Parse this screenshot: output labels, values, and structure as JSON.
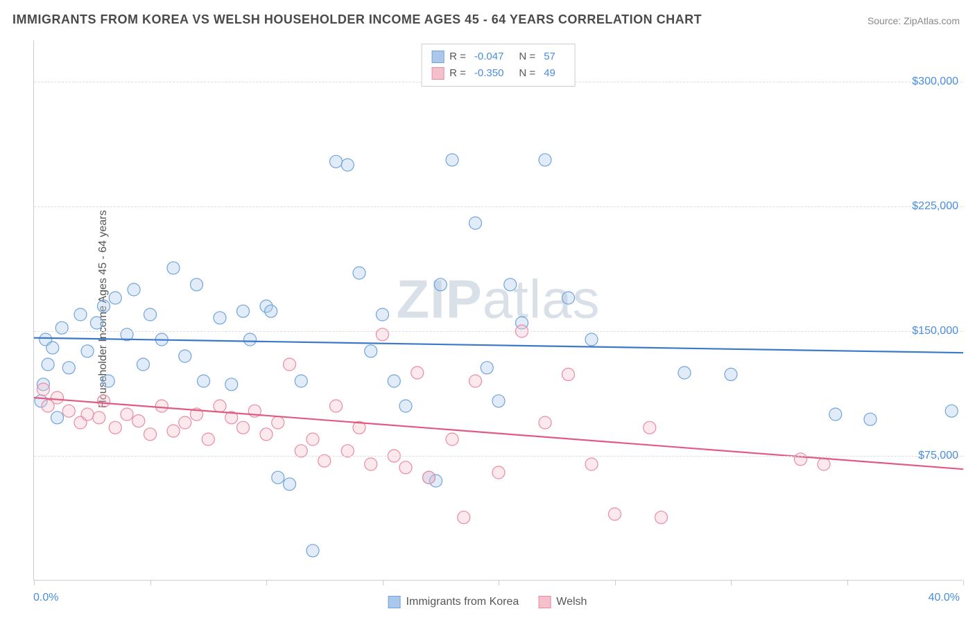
{
  "title": "IMMIGRANTS FROM KOREA VS WELSH HOUSEHOLDER INCOME AGES 45 - 64 YEARS CORRELATION CHART",
  "source_prefix": "Source: ",
  "source_name": "ZipAtlas.com",
  "watermark_a": "ZIP",
  "watermark_b": "atlas",
  "chart": {
    "type": "scatter",
    "background_color": "#ffffff",
    "grid_color": "#dddddd",
    "axis_color": "#cccccc",
    "tick_label_color": "#4a8ddb",
    "ylabel": "Householder Income Ages 45 - 64 years",
    "ylabel_color": "#555555",
    "ylabel_fontsize": 16,
    "xlim": [
      0,
      40
    ],
    "ylim": [
      0,
      325000
    ],
    "xaxis_min_label": "0.0%",
    "xaxis_max_label": "40.0%",
    "ytick_values": [
      75000,
      150000,
      225000,
      300000
    ],
    "ytick_labels": [
      "$75,000",
      "$150,000",
      "$225,000",
      "$300,000"
    ],
    "xtick_positions": [
      0,
      5,
      10,
      15,
      20,
      25,
      30,
      35,
      40
    ],
    "marker_radius": 9,
    "marker_fill_opacity": 0.35,
    "marker_stroke_width": 1.2,
    "trend_line_width": 2.2,
    "series": [
      {
        "name": "Immigrants from Korea",
        "color_fill": "#a9c8ec",
        "color_stroke": "#6fa3dc",
        "line_color": "#3b78c9",
        "R": "-0.047",
        "N": "57",
        "trend": {
          "x1": 0,
          "y1": 146000,
          "x2": 40,
          "y2": 137000
        },
        "points": [
          [
            0.3,
            108000
          ],
          [
            0.4,
            118000
          ],
          [
            0.5,
            145000
          ],
          [
            0.6,
            130000
          ],
          [
            0.8,
            140000
          ],
          [
            1.0,
            98000
          ],
          [
            1.2,
            152000
          ],
          [
            1.5,
            128000
          ],
          [
            2.0,
            160000
          ],
          [
            2.3,
            138000
          ],
          [
            2.7,
            155000
          ],
          [
            3.0,
            165000
          ],
          [
            3.2,
            120000
          ],
          [
            3.5,
            170000
          ],
          [
            4.0,
            148000
          ],
          [
            4.3,
            175000
          ],
          [
            4.7,
            130000
          ],
          [
            5.0,
            160000
          ],
          [
            5.5,
            145000
          ],
          [
            6.0,
            188000
          ],
          [
            6.5,
            135000
          ],
          [
            7.0,
            178000
          ],
          [
            7.3,
            120000
          ],
          [
            8.0,
            158000
          ],
          [
            8.5,
            118000
          ],
          [
            9.0,
            162000
          ],
          [
            9.3,
            145000
          ],
          [
            10.0,
            165000
          ],
          [
            10.2,
            162000
          ],
          [
            10.5,
            62000
          ],
          [
            11.0,
            58000
          ],
          [
            11.5,
            120000
          ],
          [
            12.0,
            18000
          ],
          [
            13.0,
            252000
          ],
          [
            13.5,
            250000
          ],
          [
            14.0,
            185000
          ],
          [
            14.5,
            138000
          ],
          [
            15.0,
            160000
          ],
          [
            15.5,
            120000
          ],
          [
            16.0,
            105000
          ],
          [
            17.0,
            62000
          ],
          [
            17.3,
            60000
          ],
          [
            17.5,
            178000
          ],
          [
            18.0,
            253000
          ],
          [
            19.0,
            215000
          ],
          [
            19.5,
            128000
          ],
          [
            20.0,
            108000
          ],
          [
            20.5,
            178000
          ],
          [
            21.0,
            155000
          ],
          [
            22.0,
            253000
          ],
          [
            23.0,
            170000
          ],
          [
            24.0,
            145000
          ],
          [
            28.0,
            125000
          ],
          [
            30.0,
            124000
          ],
          [
            34.5,
            100000
          ],
          [
            36.0,
            97000
          ],
          [
            39.5,
            102000
          ]
        ]
      },
      {
        "name": "Welsh",
        "color_fill": "#f4c0cc",
        "color_stroke": "#e98aa3",
        "line_color": "#e05a82",
        "R": "-0.350",
        "N": "49",
        "trend": {
          "x1": 0,
          "y1": 110000,
          "x2": 40,
          "y2": 67000
        },
        "points": [
          [
            0.4,
            115000
          ],
          [
            0.6,
            105000
          ],
          [
            1.0,
            110000
          ],
          [
            1.5,
            102000
          ],
          [
            2.0,
            95000
          ],
          [
            2.3,
            100000
          ],
          [
            2.8,
            98000
          ],
          [
            3.0,
            108000
          ],
          [
            3.5,
            92000
          ],
          [
            4.0,
            100000
          ],
          [
            4.5,
            96000
          ],
          [
            5.0,
            88000
          ],
          [
            5.5,
            105000
          ],
          [
            6.0,
            90000
          ],
          [
            6.5,
            95000
          ],
          [
            7.0,
            100000
          ],
          [
            7.5,
            85000
          ],
          [
            8.0,
            105000
          ],
          [
            8.5,
            98000
          ],
          [
            9.0,
            92000
          ],
          [
            9.5,
            102000
          ],
          [
            10.0,
            88000
          ],
          [
            10.5,
            95000
          ],
          [
            11.0,
            130000
          ],
          [
            11.5,
            78000
          ],
          [
            12.0,
            85000
          ],
          [
            12.5,
            72000
          ],
          [
            13.0,
            105000
          ],
          [
            13.5,
            78000
          ],
          [
            14.0,
            92000
          ],
          [
            14.5,
            70000
          ],
          [
            15.0,
            148000
          ],
          [
            15.5,
            75000
          ],
          [
            16.0,
            68000
          ],
          [
            16.5,
            125000
          ],
          [
            17.0,
            62000
          ],
          [
            18.0,
            85000
          ],
          [
            18.5,
            38000
          ],
          [
            19.0,
            120000
          ],
          [
            20.0,
            65000
          ],
          [
            21.0,
            150000
          ],
          [
            22.0,
            95000
          ],
          [
            23.0,
            124000
          ],
          [
            24.0,
            70000
          ],
          [
            25.0,
            40000
          ],
          [
            26.5,
            92000
          ],
          [
            27.0,
            38000
          ],
          [
            33.0,
            73000
          ],
          [
            34.0,
            70000
          ]
        ]
      }
    ]
  },
  "legend_top_labels": {
    "R": "R =",
    "N": "N ="
  },
  "legend_bottom": [
    {
      "label": "Immigrants from Korea",
      "fill": "#a9c8ec",
      "stroke": "#6fa3dc"
    },
    {
      "label": "Welsh",
      "fill": "#f4c0cc",
      "stroke": "#e98aa3"
    }
  ]
}
